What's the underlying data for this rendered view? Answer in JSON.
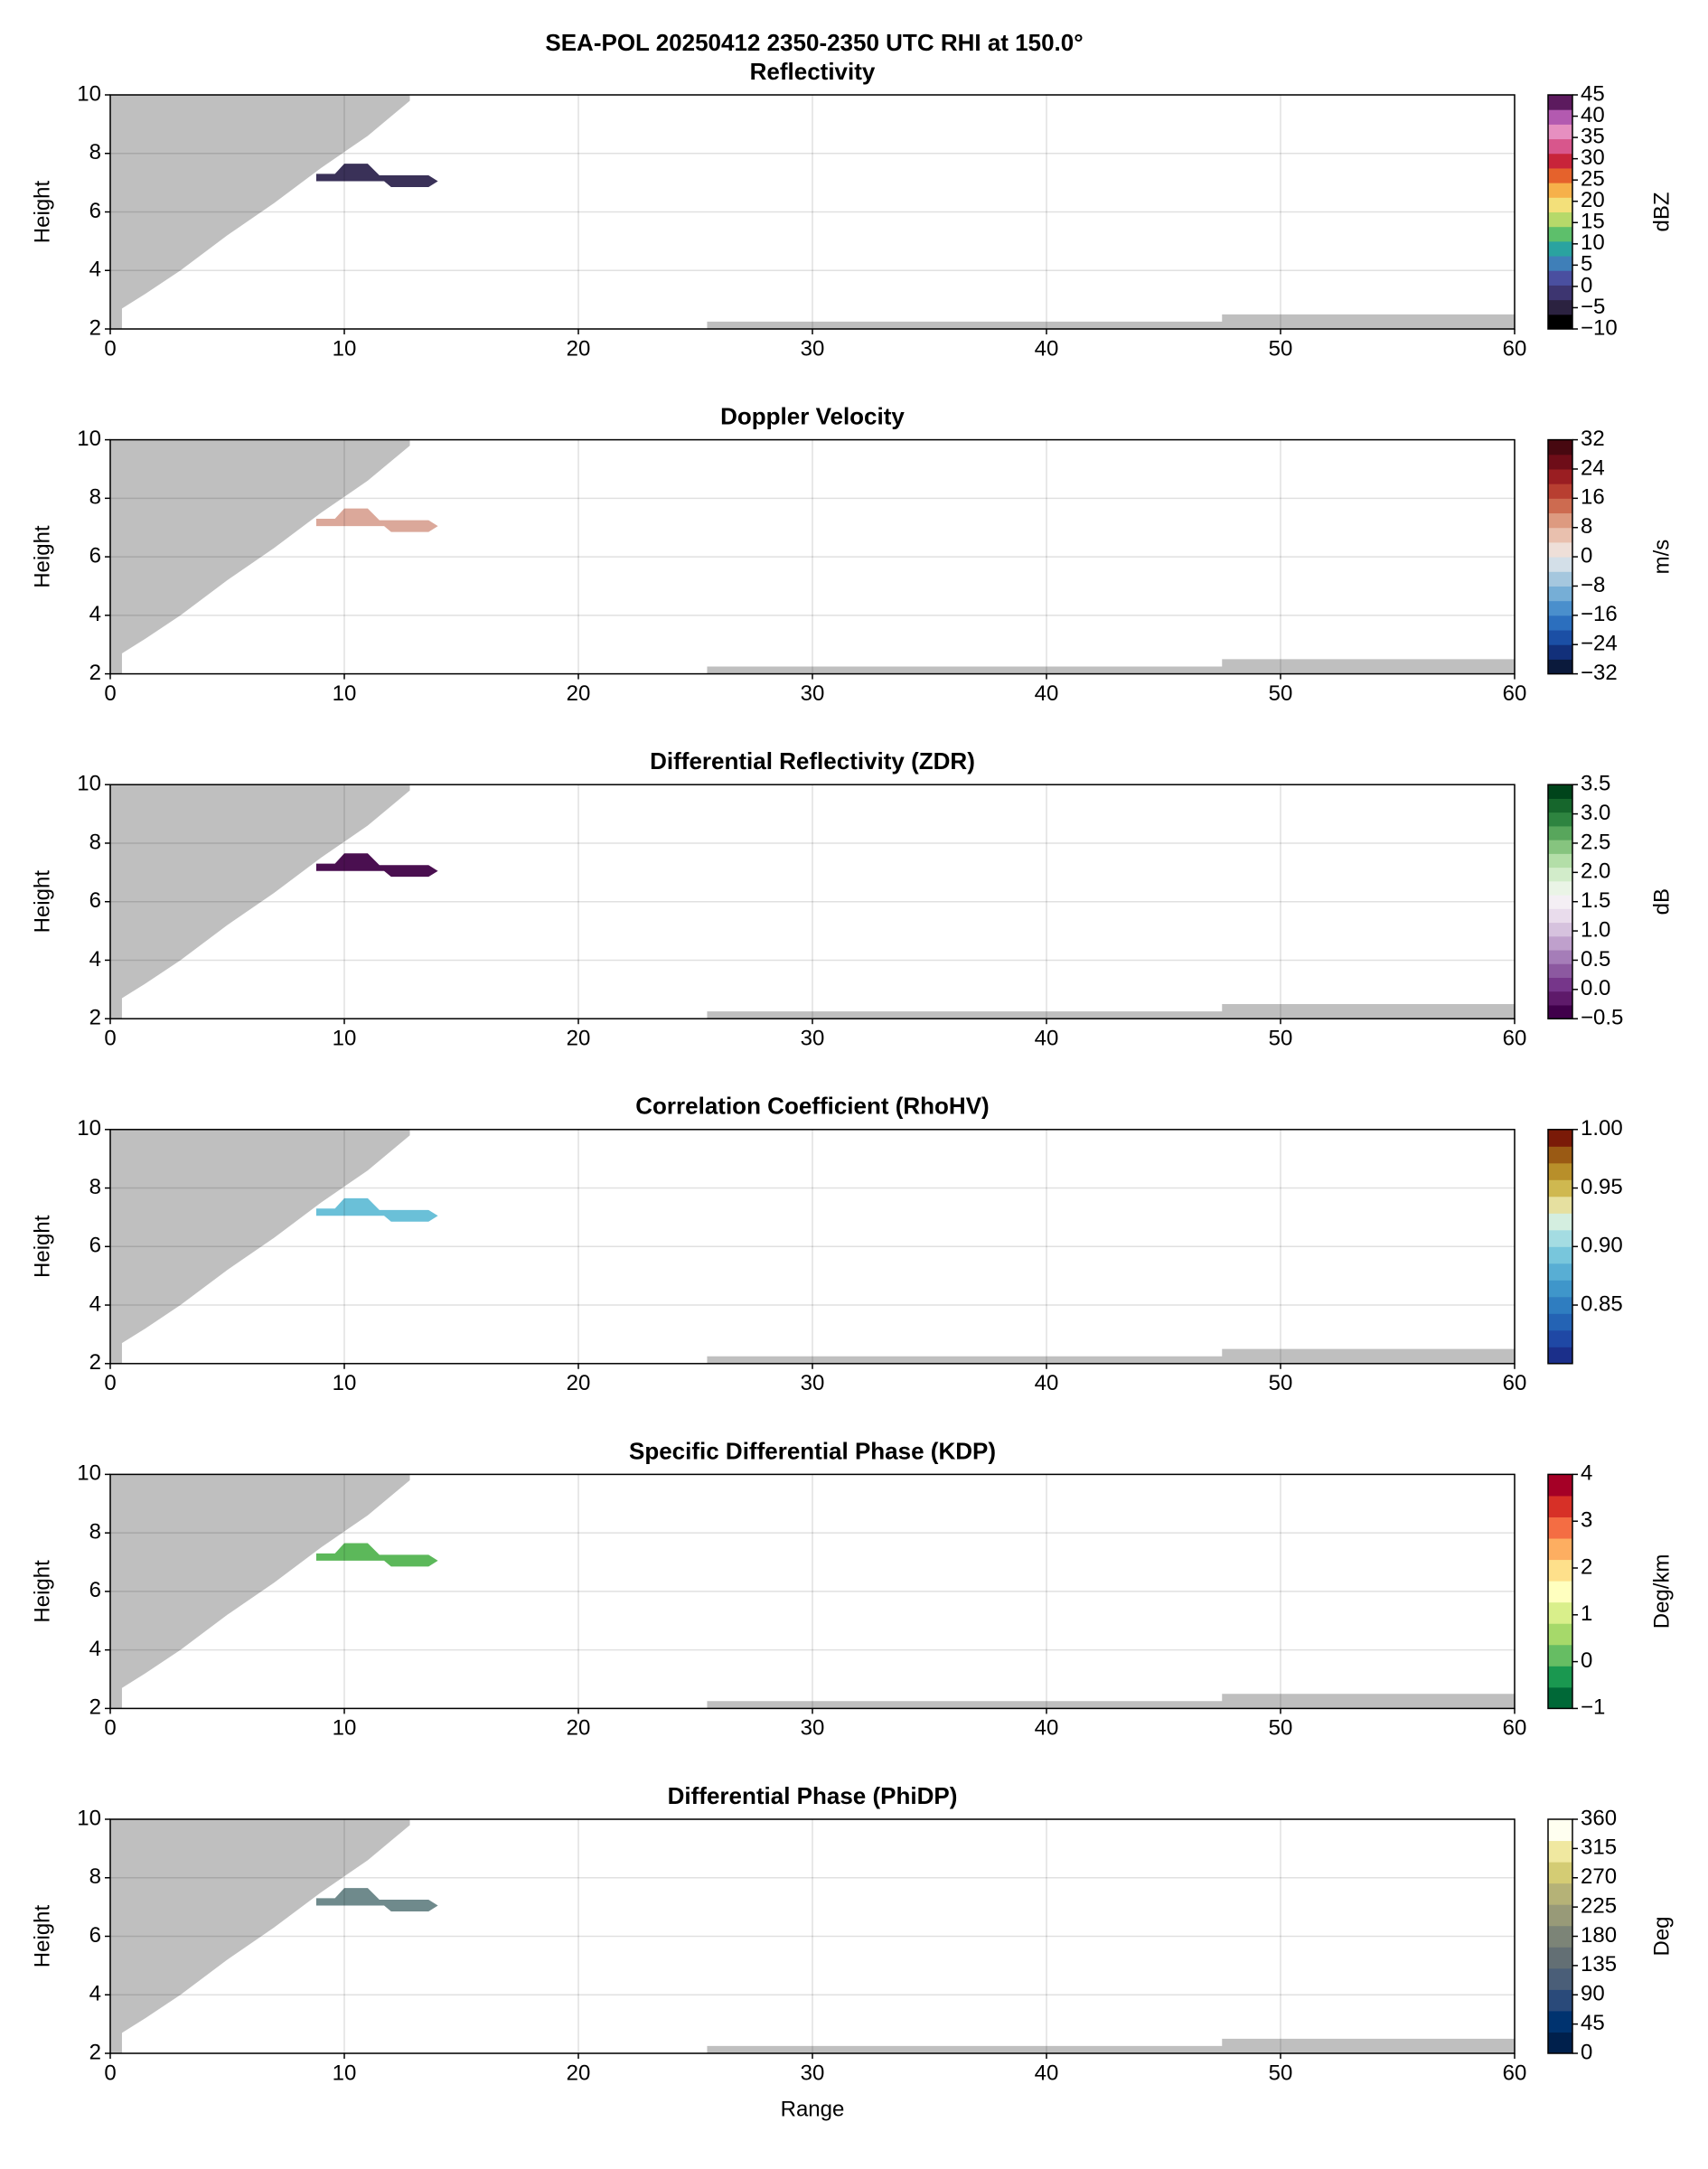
{
  "title": "SEA-POL 20250412 2350-2350 UTC RHI at 150.0°",
  "regions": [
    {
      "x": [
        0,
        0.5,
        0.5,
        1.5,
        3,
        5,
        7,
        9,
        11,
        12.8,
        12.8,
        0
      ],
      "y": [
        2,
        2,
        2.7,
        3.2,
        4,
        5.2,
        6.3,
        7.5,
        8.6,
        9.8,
        10,
        10
      ],
      "color": "#bfbfbf"
    },
    {
      "x": [
        25.5,
        60,
        60,
        47.5,
        47.5,
        25.5
      ],
      "y": [
        2,
        2,
        2.5,
        2.5,
        2.25,
        2.25
      ],
      "color": "#bfbfbf"
    },
    {
      "x": [
        8.8,
        9.6,
        10,
        11,
        11.5,
        13.6,
        14,
        13.6,
        12,
        11.7,
        8.8
      ],
      "y": [
        7.3,
        7.3,
        7.65,
        7.65,
        7.25,
        7.25,
        7.05,
        6.85,
        6.85,
        7.05,
        7.05
      ],
      "echo": true
    }
  ],
  "chart_data": [
    {
      "type": "rhi",
      "title": "Reflectivity",
      "ylabel": "Height",
      "xlim": [
        0,
        60
      ],
      "ylim": [
        2,
        10
      ],
      "xticks": [
        0,
        10,
        20,
        30,
        40,
        50,
        60
      ],
      "yticks": [
        2,
        4,
        6,
        8,
        10
      ],
      "grid": true,
      "echo_color": "#3a3158",
      "colorbar": {
        "label": "dBZ",
        "lim": [
          -10,
          45
        ],
        "ticks": [
          {
            "value": -10,
            "label": "−10"
          },
          {
            "value": -5,
            "label": "−5"
          },
          0,
          5,
          10,
          15,
          20,
          25,
          30,
          35,
          40,
          45
        ],
        "colors": [
          "#000000",
          "#2b2240",
          "#3d3570",
          "#4a4fa0",
          "#3f7fb8",
          "#2aa3a0",
          "#5dbf6b",
          "#b6d96a",
          "#f3e07a",
          "#f6b14a",
          "#e5622c",
          "#c8243a",
          "#d8568c",
          "#e68fc0",
          "#b35ab0",
          "#5c1a5e"
        ]
      }
    },
    {
      "type": "rhi",
      "title": "Doppler Velocity",
      "ylabel": "Height",
      "xlim": [
        0,
        60
      ],
      "ylim": [
        2,
        10
      ],
      "xticks": [
        0,
        10,
        20,
        30,
        40,
        50,
        60
      ],
      "yticks": [
        2,
        4,
        6,
        8,
        10
      ],
      "grid": true,
      "echo_color": "#dba89a",
      "colorbar": {
        "label": "m/s",
        "lim": [
          -32,
          32
        ],
        "ticks": [
          {
            "value": -32,
            "label": "−32"
          },
          {
            "value": -24,
            "label": "−24"
          },
          {
            "value": -16,
            "label": "−16"
          },
          {
            "value": -8,
            "label": "−8"
          },
          0,
          8,
          16,
          24,
          32
        ],
        "colors": [
          "#0b1a3c",
          "#12307a",
          "#1b4fa5",
          "#2c6fbe",
          "#4a8fcc",
          "#76aed6",
          "#a5c7de",
          "#d3dfe8",
          "#eedfd8",
          "#e9c0ae",
          "#dd9a80",
          "#cd6b50",
          "#b83f31",
          "#9a1e22",
          "#6e0d18",
          "#470810"
        ]
      }
    },
    {
      "type": "rhi",
      "title": "Differential Reflectivity (ZDR)",
      "ylabel": "Height",
      "xlim": [
        0,
        60
      ],
      "ylim": [
        2,
        10
      ],
      "xticks": [
        0,
        10,
        20,
        30,
        40,
        50,
        60
      ],
      "yticks": [
        2,
        4,
        6,
        8,
        10
      ],
      "grid": true,
      "echo_color": "#4a0f50",
      "colorbar": {
        "label": "dB",
        "lim": [
          -0.5,
          3.5
        ],
        "ticks": [
          {
            "value": -0.5,
            "label": "−0.5"
          },
          {
            "value": 0,
            "label": "0.0"
          },
          0.5,
          {
            "value": 1,
            "label": "1.0"
          },
          1.5,
          {
            "value": 2,
            "label": "2.0"
          },
          2.5,
          {
            "value": 3,
            "label": "3.0"
          },
          3.5
        ],
        "colors": [
          "#40004b",
          "#5e1a6a",
          "#76368a",
          "#8c59a0",
          "#a57db8",
          "#bfa0cc",
          "#d6c2de",
          "#e9dcec",
          "#f4eff4",
          "#eaf4e6",
          "#d2ecca",
          "#b3dea8",
          "#86c47f",
          "#58a65c",
          "#2e8440",
          "#16662c",
          "#00441b"
        ]
      }
    },
    {
      "type": "rhi",
      "title": "Correlation Coefficient (RhoHV)",
      "ylabel": "Height",
      "xlim": [
        0,
        60
      ],
      "ylim": [
        2,
        10
      ],
      "xticks": [
        0,
        10,
        20,
        30,
        40,
        50,
        60
      ],
      "yticks": [
        2,
        4,
        6,
        8,
        10
      ],
      "grid": true,
      "echo_color": "#6ac0d8",
      "colorbar": {
        "label": "",
        "lim": [
          0.8,
          1
        ],
        "ticks": [
          0.85,
          {
            "value": 0.9,
            "label": "0.90"
          },
          0.95,
          {
            "value": 1,
            "label": "1.00"
          }
        ],
        "colors": [
          "#1b2f8a",
          "#1f48a5",
          "#2463b4",
          "#2f7dc0",
          "#3f96ca",
          "#58aed4",
          "#78c6dc",
          "#a4dce2",
          "#d4eee0",
          "#e6e0a0",
          "#cfb850",
          "#b88f2a",
          "#9a5a14",
          "#7a1a08"
        ]
      }
    },
    {
      "type": "rhi",
      "title": "Specific Differential Phase (KDP)",
      "ylabel": "Height",
      "xlim": [
        0,
        60
      ],
      "ylim": [
        2,
        10
      ],
      "xticks": [
        0,
        10,
        20,
        30,
        40,
        50,
        60
      ],
      "yticks": [
        2,
        4,
        6,
        8,
        10
      ],
      "grid": true,
      "echo_color": "#5cb85a",
      "colorbar": {
        "label": "Deg/km",
        "lim": [
          -1,
          4
        ],
        "ticks": [
          {
            "value": -1,
            "label": "−1"
          },
          0,
          1,
          2,
          3,
          4
        ],
        "colors": [
          "#006837",
          "#1a9850",
          "#66bd63",
          "#a6d96a",
          "#d9ef8b",
          "#ffffbf",
          "#fee08b",
          "#fdae61",
          "#f46d43",
          "#d73027",
          "#a50026"
        ]
      }
    },
    {
      "type": "rhi",
      "title": "Differential Phase (PhiDP)",
      "ylabel": "Height",
      "xlabel": "Range",
      "xlim": [
        0,
        60
      ],
      "ylim": [
        2,
        10
      ],
      "xticks": [
        0,
        10,
        20,
        30,
        40,
        50,
        60
      ],
      "yticks": [
        2,
        4,
        6,
        8,
        10
      ],
      "grid": true,
      "echo_color": "#6f8a8c",
      "colorbar": {
        "label": "Deg",
        "lim": [
          0,
          360
        ],
        "ticks": [
          0,
          45,
          90,
          135,
          180,
          225,
          270,
          315,
          360
        ],
        "colors": [
          "#00204c",
          "#00336f",
          "#2a4a7a",
          "#4a5e78",
          "#636f74",
          "#7c8477",
          "#989a78",
          "#b5b277",
          "#d4cc74",
          "#f0e8a0",
          "#fffff0"
        ]
      }
    }
  ]
}
